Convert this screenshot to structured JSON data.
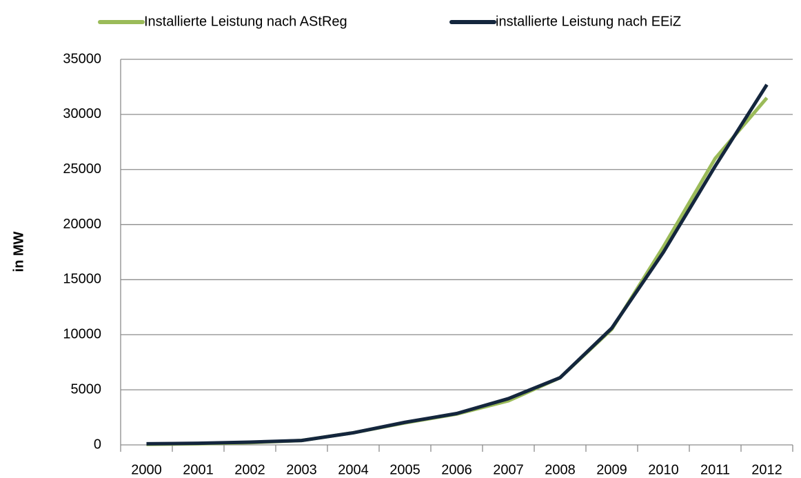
{
  "chart_data": {
    "type": "line",
    "y_label": "in MW",
    "categories": [
      "2000",
      "2001",
      "2002",
      "2003",
      "2004",
      "2005",
      "2006",
      "2007",
      "2008",
      "2009",
      "2010",
      "2011",
      "2012"
    ],
    "series": [
      {
        "name": "Installierte Leistung nach AStReg",
        "color": "#9bbb59",
        "values": [
          50,
          100,
          200,
          400,
          1100,
          2000,
          2800,
          4000,
          6100,
          10500,
          18000,
          26000,
          31500
        ]
      },
      {
        "name": "installierte Leistung nach EEiZ",
        "color": "#14263d",
        "values": [
          100,
          150,
          250,
          400,
          1100,
          2050,
          2850,
          4200,
          6100,
          10600,
          17500,
          25300,
          32700
        ]
      }
    ],
    "ylim": [
      0,
      35000
    ],
    "yticks": [
      0,
      5000,
      10000,
      15000,
      20000,
      25000,
      30000,
      35000
    ],
    "grid": true,
    "legend": "top"
  }
}
